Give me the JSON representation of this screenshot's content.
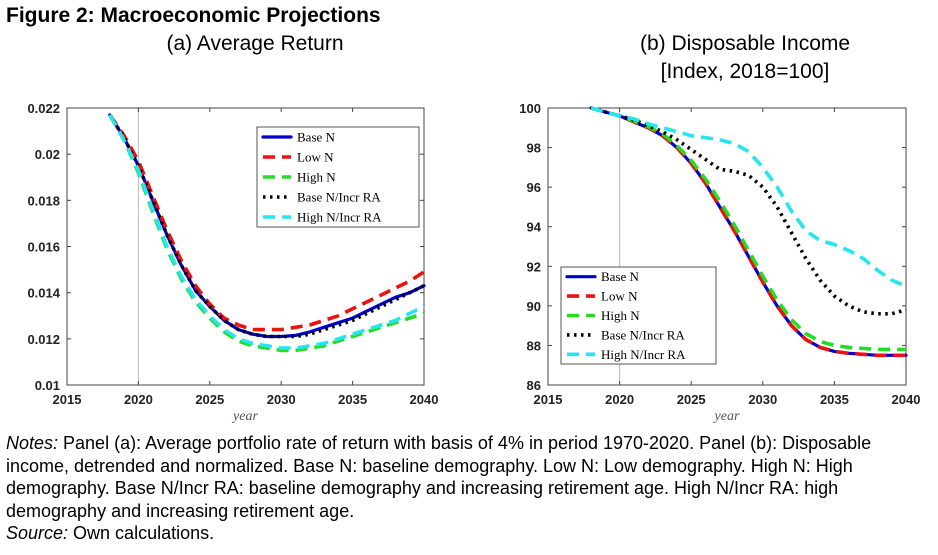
{
  "figure_title": "Figure 2: Macroeconomic Projections",
  "panel_a_title": "(a)  Average Return",
  "panel_b_title": "(b)  Disposable Income",
  "panel_b_subtitle": "[Index, 2018=100]",
  "notes_label": "Notes:",
  "notes_text": " Panel (a): Average portfolio rate of return with basis of 4% in period 1970-2020. Panel (b): Disposable income, detrended and normalized. Base N: baseline demography. Low N: Low demography. High N: High demography. Base N/Incr RA: baseline demography and increasing retirement age. High N/Incr RA: high demography and increasing retirement age.",
  "source_label": "Source:",
  "source_text": " Own calculations.",
  "colors": {
    "base_n": "#0000cc",
    "low_n": "#ee1111",
    "high_n": "#22dd22",
    "base_n_incr_ra": "#000000",
    "high_n_incr_ra": "#22e6f2",
    "vline": "#bbbbbb"
  },
  "chart_data": [
    {
      "type": "line",
      "xlabel": "year",
      "ylabel": "",
      "xlim": [
        2015,
        2040
      ],
      "ylim": [
        0.01,
        0.022
      ],
      "xticks": [
        2015,
        2020,
        2025,
        2030,
        2035,
        2040
      ],
      "xtick_labels": [
        "2015",
        "2020",
        "2025",
        "2030",
        "2035",
        "2040"
      ],
      "yticks": [
        0.01,
        0.012,
        0.014,
        0.016,
        0.018,
        0.02,
        0.022
      ],
      "ytick_labels": [
        "0.01",
        "0.012",
        "0.014",
        "0.016",
        "0.018",
        "0.02",
        "0.022"
      ],
      "vline": 2020,
      "legend_position": "top-right",
      "series": [
        {
          "name": "Base N",
          "style": "solid",
          "color": "#0000cc",
          "x": [
            2018,
            2019,
            2020,
            2021,
            2022,
            2023,
            2024,
            2025,
            2026,
            2027,
            2028,
            2029,
            2030,
            2031,
            2032,
            2033,
            2034,
            2035,
            2036,
            2037,
            2038,
            2039,
            2040
          ],
          "y": [
            0.0217,
            0.0207,
            0.0195,
            0.018,
            0.0165,
            0.0152,
            0.0141,
            0.0134,
            0.0128,
            0.0124,
            0.0122,
            0.0121,
            0.0121,
            0.01215,
            0.0123,
            0.0125,
            0.0127,
            0.0129,
            0.0132,
            0.0135,
            0.0138,
            0.014,
            0.0143
          ]
        },
        {
          "name": "Low N",
          "style": "dashed",
          "color": "#ee1111",
          "x": [
            2018,
            2019,
            2020,
            2021,
            2022,
            2023,
            2024,
            2025,
            2026,
            2027,
            2028,
            2029,
            2030,
            2031,
            2032,
            2033,
            2034,
            2035,
            2036,
            2037,
            2038,
            2039,
            2040
          ],
          "y": [
            0.0217,
            0.0208,
            0.0197,
            0.0182,
            0.0167,
            0.0154,
            0.0143,
            0.0135,
            0.0129,
            0.0126,
            0.0124,
            0.0124,
            0.0124,
            0.0125,
            0.0126,
            0.0128,
            0.013,
            0.0133,
            0.0136,
            0.0139,
            0.0142,
            0.0145,
            0.0149
          ]
        },
        {
          "name": "High N",
          "style": "dashed",
          "color": "#22dd22",
          "x": [
            2018,
            2019,
            2020,
            2021,
            2022,
            2023,
            2024,
            2025,
            2026,
            2027,
            2028,
            2029,
            2030,
            2031,
            2032,
            2033,
            2034,
            2035,
            2036,
            2037,
            2038,
            2039,
            2040
          ],
          "y": [
            0.0217,
            0.0206,
            0.0192,
            0.0175,
            0.0159,
            0.0146,
            0.0136,
            0.0129,
            0.0123,
            0.0119,
            0.0117,
            0.0116,
            0.0115,
            0.0115,
            0.0116,
            0.0117,
            0.0119,
            0.0121,
            0.0123,
            0.0125,
            0.0127,
            0.0129,
            0.0131
          ]
        },
        {
          "name": "Base N/Incr RA",
          "style": "dotted",
          "color": "#000000",
          "x": [
            2018,
            2019,
            2020,
            2021,
            2022,
            2023,
            2024,
            2025,
            2026,
            2027,
            2028,
            2029,
            2030,
            2031,
            2032,
            2033,
            2034,
            2035,
            2036,
            2037,
            2038,
            2039,
            2040
          ],
          "y": [
            0.0217,
            0.0207,
            0.0195,
            0.018,
            0.0165,
            0.0152,
            0.0141,
            0.0134,
            0.0128,
            0.0124,
            0.0122,
            0.0121,
            0.0121,
            0.0121,
            0.0122,
            0.0124,
            0.0126,
            0.0128,
            0.0131,
            0.0134,
            0.0137,
            0.014,
            0.0143
          ]
        },
        {
          "name": "High N/Incr RA",
          "style": "dashed",
          "color": "#22e6f2",
          "x": [
            2018,
            2019,
            2020,
            2021,
            2022,
            2023,
            2024,
            2025,
            2026,
            2027,
            2028,
            2029,
            2030,
            2031,
            2032,
            2033,
            2034,
            2035,
            2036,
            2037,
            2038,
            2039,
            2040
          ],
          "y": [
            0.0217,
            0.0206,
            0.0193,
            0.0176,
            0.016,
            0.0147,
            0.0137,
            0.013,
            0.0124,
            0.012,
            0.0118,
            0.0117,
            0.0116,
            0.0116,
            0.0117,
            0.0118,
            0.012,
            0.0122,
            0.0124,
            0.0126,
            0.0128,
            0.0131,
            0.0134
          ]
        }
      ]
    },
    {
      "type": "line",
      "xlabel": "year",
      "ylabel": "",
      "xlim": [
        2015,
        2040
      ],
      "ylim": [
        86,
        100
      ],
      "xticks": [
        2015,
        2020,
        2025,
        2030,
        2035,
        2040
      ],
      "xtick_labels": [
        "2015",
        "2020",
        "2025",
        "2030",
        "2035",
        "2040"
      ],
      "yticks": [
        86,
        88,
        90,
        92,
        94,
        96,
        98,
        100
      ],
      "ytick_labels": [
        "86",
        "88",
        "90",
        "92",
        "94",
        "96",
        "98",
        "100"
      ],
      "vline": 2020,
      "legend_position": "bottom-left",
      "series": [
        {
          "name": "Base N",
          "style": "solid",
          "color": "#0000cc",
          "x": [
            2018,
            2019,
            2020,
            2021,
            2022,
            2023,
            2024,
            2025,
            2026,
            2027,
            2028,
            2029,
            2030,
            2031,
            2032,
            2033,
            2034,
            2035,
            2036,
            2037,
            2038,
            2039,
            2040
          ],
          "y": [
            100,
            99.8,
            99.6,
            99.3,
            99.0,
            98.6,
            98.0,
            97.2,
            96.2,
            95.0,
            93.8,
            92.5,
            91.2,
            90.0,
            89.0,
            88.3,
            87.9,
            87.7,
            87.6,
            87.55,
            87.5,
            87.5,
            87.5
          ]
        },
        {
          "name": "Low N",
          "style": "dashed",
          "color": "#ee1111",
          "x": [
            2018,
            2019,
            2020,
            2021,
            2022,
            2023,
            2024,
            2025,
            2026,
            2027,
            2028,
            2029,
            2030,
            2031,
            2032,
            2033,
            2034,
            2035,
            2036,
            2037,
            2038,
            2039,
            2040
          ],
          "y": [
            100,
            99.8,
            99.6,
            99.3,
            99.0,
            98.6,
            98.0,
            97.2,
            96.2,
            95.0,
            93.8,
            92.5,
            91.2,
            90.0,
            89.0,
            88.3,
            87.9,
            87.7,
            87.6,
            87.55,
            87.5,
            87.5,
            87.5
          ]
        },
        {
          "name": "High N",
          "style": "dashed",
          "color": "#22dd22",
          "x": [
            2018,
            2019,
            2020,
            2021,
            2022,
            2023,
            2024,
            2025,
            2026,
            2027,
            2028,
            2029,
            2030,
            2031,
            2032,
            2033,
            2034,
            2035,
            2036,
            2037,
            2038,
            2039,
            2040
          ],
          "y": [
            100,
            99.8,
            99.6,
            99.35,
            99.05,
            98.7,
            98.1,
            97.35,
            96.4,
            95.3,
            94.1,
            92.8,
            91.5,
            90.3,
            89.3,
            88.6,
            88.2,
            88.0,
            87.9,
            87.85,
            87.8,
            87.8,
            87.8
          ]
        },
        {
          "name": "Base N/Incr RA",
          "style": "dotted",
          "color": "#000000",
          "x": [
            2018,
            2019,
            2020,
            2021,
            2022,
            2023,
            2024,
            2025,
            2026,
            2027,
            2028,
            2029,
            2030,
            2031,
            2032,
            2033,
            2034,
            2035,
            2036,
            2037,
            2038,
            2039,
            2040
          ],
          "y": [
            100,
            99.8,
            99.6,
            99.4,
            99.1,
            98.8,
            98.4,
            97.9,
            97.4,
            96.9,
            96.8,
            96.6,
            96.0,
            95.0,
            93.7,
            92.4,
            91.3,
            90.5,
            90.0,
            89.7,
            89.6,
            89.6,
            89.8
          ]
        },
        {
          "name": "High N/Incr RA",
          "style": "dashed",
          "color": "#22e6f2",
          "x": [
            2018,
            2019,
            2020,
            2021,
            2022,
            2023,
            2024,
            2025,
            2026,
            2027,
            2028,
            2029,
            2030,
            2031,
            2032,
            2033,
            2034,
            2035,
            2036,
            2037,
            2038,
            2039,
            2040
          ],
          "y": [
            100,
            99.8,
            99.6,
            99.45,
            99.2,
            99.0,
            98.8,
            98.6,
            98.5,
            98.4,
            98.2,
            97.8,
            97.0,
            96.0,
            94.8,
            93.8,
            93.3,
            93.1,
            92.8,
            92.4,
            91.8,
            91.3,
            91.0
          ]
        }
      ]
    }
  ]
}
